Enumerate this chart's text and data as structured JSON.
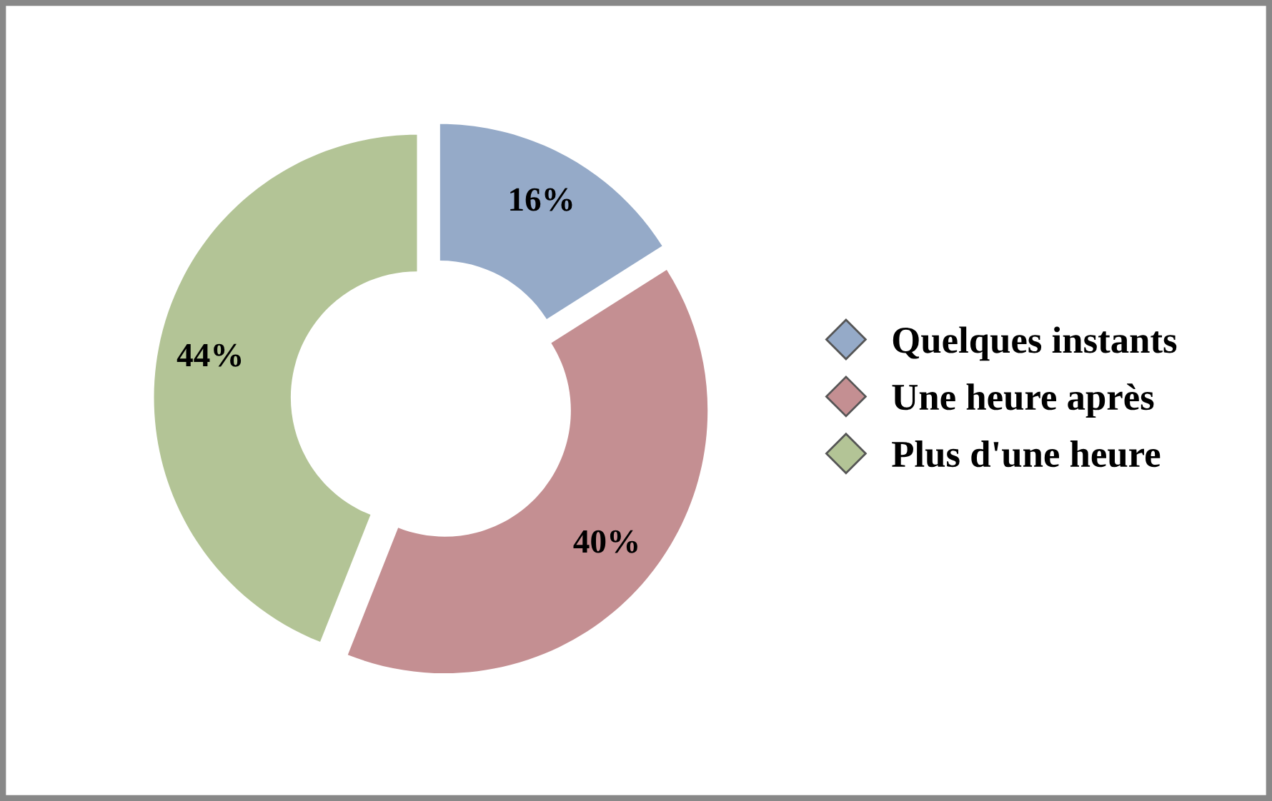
{
  "chart_data": {
    "type": "donut",
    "categories": [
      "Quelques instants",
      "Une heure après",
      "Plus d'une heure"
    ],
    "values": [
      16,
      40,
      44
    ],
    "colors": [
      "#95aac8",
      "#c48f92",
      "#b3c496"
    ],
    "value_labels": [
      "16%",
      "40%",
      "44%"
    ],
    "legend": "right"
  }
}
